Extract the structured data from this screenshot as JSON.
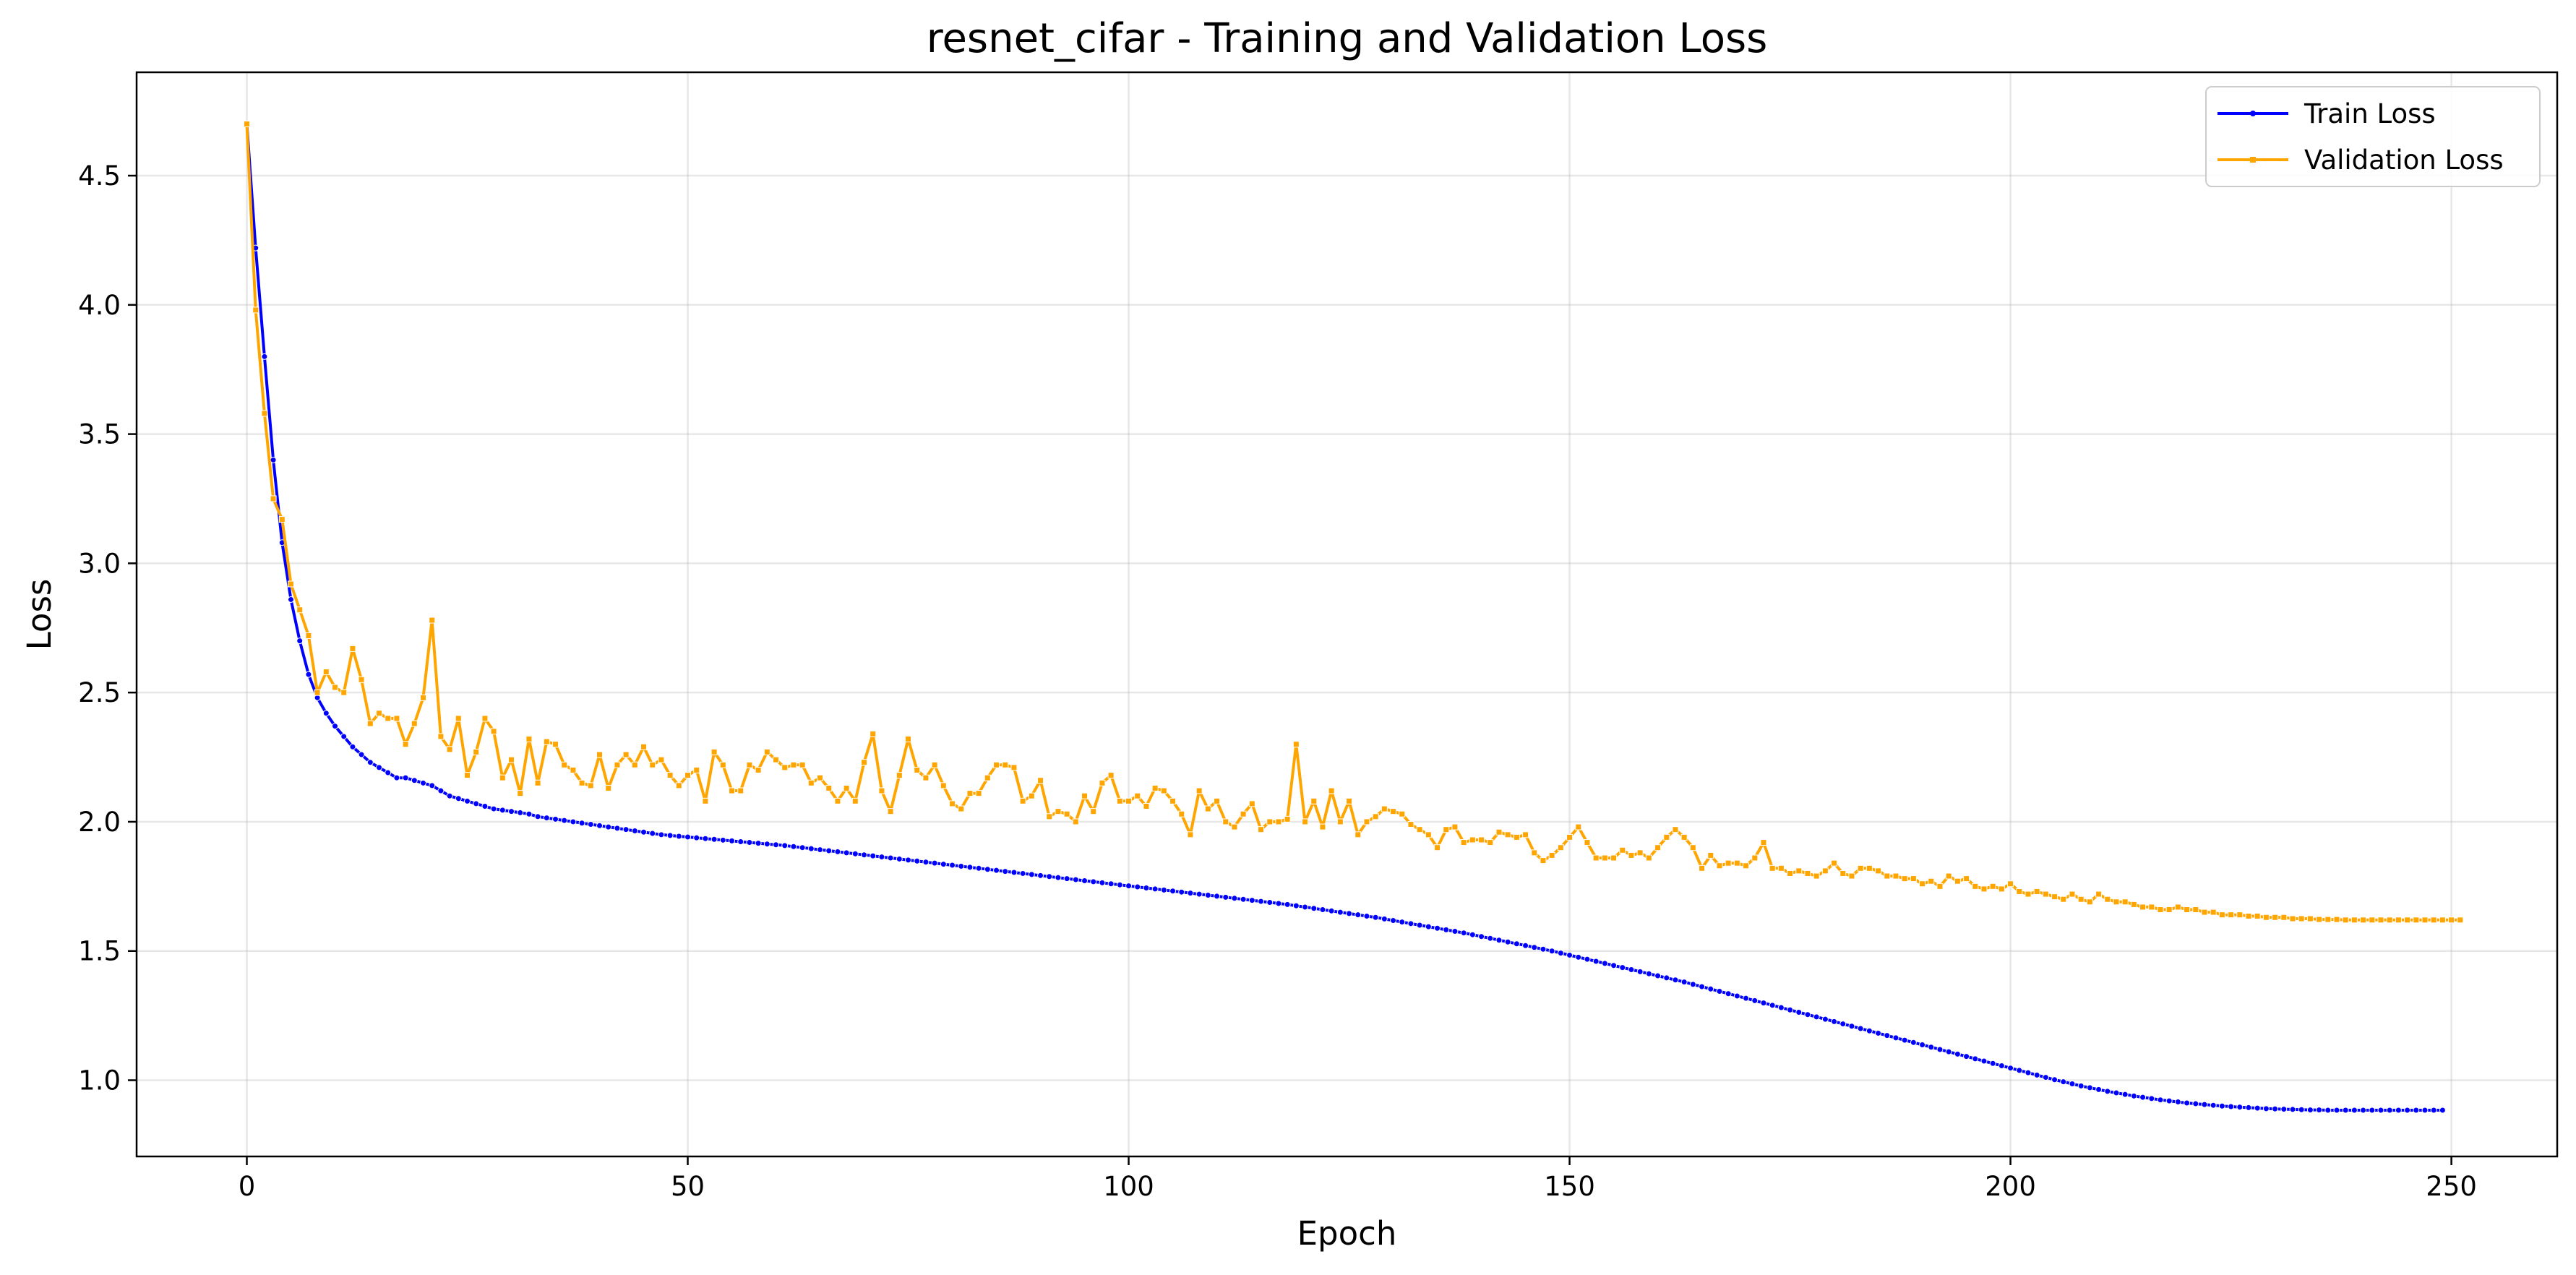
{
  "chart_data": {
    "type": "line",
    "title": "resnet_cifar - Training and Validation Loss",
    "xlabel": "Epoch",
    "ylabel": "Loss",
    "xlim": [
      -12.5,
      262
    ],
    "ylim": [
      0.705,
      4.9
    ],
    "x_ticks": [
      0,
      50,
      100,
      150,
      200,
      250
    ],
    "x_tick_labels": [
      "0",
      "50",
      "100",
      "150",
      "200",
      "250"
    ],
    "y_ticks": [
      1.0,
      1.5,
      2.0,
      2.5,
      3.0,
      3.5,
      4.0,
      4.5
    ],
    "y_tick_labels": [
      "1.0",
      "1.5",
      "2.0",
      "2.5",
      "3.0",
      "3.5",
      "4.0",
      "4.5"
    ],
    "grid": true,
    "legend_position": "top-right",
    "x_start": 0,
    "series": [
      {
        "name": "Train Loss",
        "color": "#0000ff",
        "marker": "circle",
        "values": [
          4.7,
          4.22,
          3.8,
          3.4,
          3.08,
          2.86,
          2.7,
          2.57,
          2.48,
          2.42,
          2.37,
          2.33,
          2.29,
          2.26,
          2.23,
          2.21,
          2.19,
          2.17,
          2.17,
          2.16,
          2.15,
          2.14,
          2.12,
          2.1,
          2.09,
          2.08,
          2.07,
          2.06,
          2.05,
          2.045,
          2.04,
          2.035,
          2.03,
          2.02,
          2.015,
          2.01,
          2.005,
          2.0,
          1.995,
          1.99,
          1.985,
          1.98,
          1.975,
          1.97,
          1.965,
          1.96,
          1.955,
          1.95,
          1.947,
          1.944,
          1.941,
          1.938,
          1.935,
          1.932,
          1.929,
          1.926,
          1.923,
          1.92,
          1.917,
          1.914,
          1.911,
          1.908,
          1.904,
          1.9,
          1.896,
          1.892,
          1.888,
          1.884,
          1.88,
          1.876,
          1.872,
          1.868,
          1.864,
          1.86,
          1.856,
          1.852,
          1.848,
          1.844,
          1.84,
          1.836,
          1.832,
          1.828,
          1.824,
          1.82,
          1.816,
          1.812,
          1.808,
          1.804,
          1.8,
          1.796,
          1.792,
          1.788,
          1.784,
          1.78,
          1.776,
          1.772,
          1.768,
          1.764,
          1.76,
          1.756,
          1.752,
          1.748,
          1.744,
          1.74,
          1.736,
          1.732,
          1.728,
          1.724,
          1.72,
          1.716,
          1.712,
          1.708,
          1.704,
          1.7,
          1.696,
          1.692,
          1.688,
          1.684,
          1.68,
          1.675,
          1.67,
          1.665,
          1.66,
          1.655,
          1.65,
          1.645,
          1.64,
          1.635,
          1.63,
          1.624,
          1.618,
          1.612,
          1.606,
          1.6,
          1.594,
          1.588,
          1.582,
          1.576,
          1.57,
          1.563,
          1.556,
          1.549,
          1.542,
          1.535,
          1.528,
          1.521,
          1.514,
          1.507,
          1.5,
          1.492,
          1.484,
          1.476,
          1.468,
          1.46,
          1.452,
          1.444,
          1.436,
          1.428,
          1.42,
          1.412,
          1.404,
          1.396,
          1.388,
          1.38,
          1.371,
          1.362,
          1.353,
          1.344,
          1.335,
          1.326,
          1.317,
          1.308,
          1.299,
          1.29,
          1.281,
          1.272,
          1.263,
          1.254,
          1.245,
          1.236,
          1.227,
          1.218,
          1.209,
          1.2,
          1.191,
          1.182,
          1.173,
          1.164,
          1.155,
          1.146,
          1.137,
          1.128,
          1.119,
          1.11,
          1.101,
          1.092,
          1.083,
          1.074,
          1.065,
          1.056,
          1.047,
          1.038,
          1.029,
          1.02,
          1.011,
          1.002,
          0.994,
          0.986,
          0.978,
          0.971,
          0.964,
          0.957,
          0.951,
          0.945,
          0.939,
          0.934,
          0.929,
          0.924,
          0.92,
          0.916,
          0.912,
          0.909,
          0.906,
          0.903,
          0.9,
          0.898,
          0.896,
          0.894,
          0.892,
          0.89,
          0.889,
          0.888,
          0.887,
          0.886,
          0.885,
          0.885,
          0.884,
          0.884,
          0.884,
          0.884,
          0.884,
          0.884,
          0.884,
          0.884,
          0.884,
          0.884,
          0.884,
          0.884,
          0.884,
          0.884
        ]
      },
      {
        "name": "Validation Loss",
        "color": "#ffa500",
        "marker": "square",
        "values": [
          4.7,
          3.98,
          3.58,
          3.25,
          3.17,
          2.92,
          2.82,
          2.72,
          2.5,
          2.58,
          2.52,
          2.5,
          2.67,
          2.55,
          2.38,
          2.42,
          2.4,
          2.4,
          2.3,
          2.38,
          2.48,
          2.78,
          2.33,
          2.28,
          2.4,
          2.18,
          2.27,
          2.4,
          2.35,
          2.17,
          2.24,
          2.11,
          2.32,
          2.15,
          2.31,
          2.3,
          2.22,
          2.2,
          2.15,
          2.14,
          2.26,
          2.13,
          2.22,
          2.26,
          2.22,
          2.29,
          2.22,
          2.24,
          2.18,
          2.14,
          2.18,
          2.2,
          2.08,
          2.27,
          2.22,
          2.12,
          2.12,
          2.22,
          2.2,
          2.27,
          2.24,
          2.21,
          2.22,
          2.22,
          2.15,
          2.17,
          2.13,
          2.08,
          2.13,
          2.08,
          2.23,
          2.34,
          2.12,
          2.04,
          2.18,
          2.32,
          2.2,
          2.17,
          2.22,
          2.14,
          2.07,
          2.05,
          2.11,
          2.11,
          2.17,
          2.22,
          2.22,
          2.21,
          2.08,
          2.1,
          2.16,
          2.02,
          2.04,
          2.03,
          2.0,
          2.1,
          2.04,
          2.15,
          2.18,
          2.08,
          2.08,
          2.1,
          2.06,
          2.13,
          2.12,
          2.08,
          2.03,
          1.95,
          2.12,
          2.05,
          2.08,
          2.0,
          1.98,
          2.03,
          2.07,
          1.97,
          2.0,
          2.0,
          2.01,
          2.3,
          2.0,
          2.08,
          1.98,
          2.12,
          2.0,
          2.08,
          1.95,
          2.0,
          2.02,
          2.05,
          2.04,
          2.03,
          1.99,
          1.97,
          1.95,
          1.9,
          1.97,
          1.98,
          1.92,
          1.93,
          1.93,
          1.92,
          1.96,
          1.95,
          1.94,
          1.95,
          1.88,
          1.85,
          1.87,
          1.9,
          1.94,
          1.98,
          1.92,
          1.86,
          1.86,
          1.86,
          1.89,
          1.87,
          1.88,
          1.86,
          1.9,
          1.94,
          1.97,
          1.94,
          1.9,
          1.82,
          1.87,
          1.83,
          1.84,
          1.84,
          1.83,
          1.86,
          1.92,
          1.82,
          1.82,
          1.8,
          1.81,
          1.8,
          1.79,
          1.81,
          1.84,
          1.8,
          1.79,
          1.82,
          1.82,
          1.81,
          1.79,
          1.79,
          1.78,
          1.78,
          1.76,
          1.77,
          1.75,
          1.79,
          1.77,
          1.78,
          1.75,
          1.74,
          1.75,
          1.74,
          1.76,
          1.73,
          1.72,
          1.73,
          1.72,
          1.71,
          1.7,
          1.72,
          1.7,
          1.69,
          1.72,
          1.7,
          1.69,
          1.69,
          1.68,
          1.67,
          1.67,
          1.66,
          1.66,
          1.67,
          1.66,
          1.66,
          1.65,
          1.65,
          1.64,
          1.64,
          1.64,
          1.635,
          1.635,
          1.63,
          1.63,
          1.63,
          1.625,
          1.625,
          1.625,
          1.622,
          1.622,
          1.622,
          1.62,
          1.62,
          1.62,
          1.62,
          1.62,
          1.62,
          1.62,
          1.62,
          1.62,
          1.62,
          1.62,
          1.62,
          1.62,
          1.62
        ]
      }
    ]
  }
}
